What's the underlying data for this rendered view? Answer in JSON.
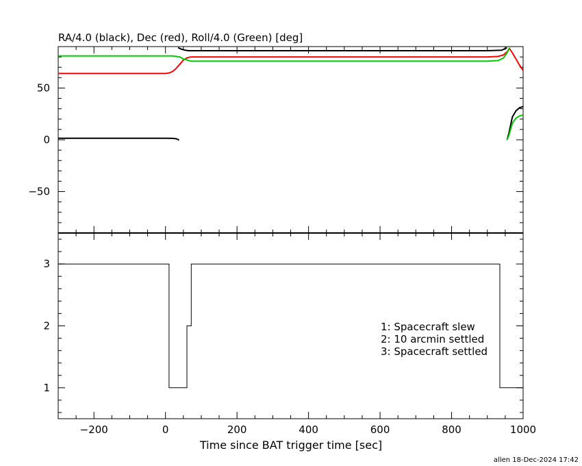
{
  "chart_data": [
    {
      "type": "line",
      "title": "RA/4.0 (black), Dec (red), Roll/4.0 (Green) [deg]",
      "xlim": [
        -300,
        1000
      ],
      "ylim": [
        -90,
        90
      ],
      "yticks": [
        "50",
        "0",
        "−50"
      ],
      "yticks_values": [
        50,
        0,
        -50
      ],
      "grid": false,
      "series": [
        {
          "name": "RA/4.0",
          "color": "#000000",
          "segments": [
            {
              "x": [
                -300,
                -200,
                -100,
                0,
                20,
                30,
                35,
                38
              ],
              "y": [
                1.5,
                1.5,
                1.5,
                1.5,
                1.4,
                1.0,
                0.3,
                -0.5
              ]
            },
            {
              "x": [
                35,
                45,
                55,
                65,
                80,
                200,
                400,
                600,
                800,
                900,
                940,
                955
              ],
              "y": [
                89,
                87.5,
                86.5,
                86,
                86,
                86,
                86,
                86,
                86,
                86,
                86.5,
                89
              ]
            },
            {
              "x": [
                955,
                960,
                965,
                970,
                980,
                990,
                1000
              ],
              "y": [
                0,
                6,
                14,
                22,
                28,
                31,
                32
              ]
            }
          ]
        },
        {
          "name": "Dec",
          "color": "#ff0000",
          "segments": [
            {
              "x": [
                -300,
                -200,
                -100,
                0,
                10,
                20,
                30,
                40,
                50,
                60,
                70,
                100,
                300,
                500,
                700,
                900,
                930,
                945,
                955,
                962,
                970,
                980,
                990,
                1000
              ],
              "y": [
                64,
                64,
                64,
                64,
                64.5,
                66,
                69,
                73,
                77,
                79,
                80,
                80,
                80,
                80,
                80,
                80,
                80.5,
                82,
                85,
                88,
                84,
                78,
                72,
                67
              ]
            }
          ]
        },
        {
          "name": "Roll/4.0",
          "color": "#00cc00",
          "segments": [
            {
              "x": [
                -300,
                -200,
                -100,
                0,
                20,
                40,
                50,
                60,
                70,
                100,
                300,
                500,
                700,
                900,
                930,
                945,
                955,
                962
              ],
              "y": [
                81,
                81,
                81,
                81,
                81,
                80,
                78,
                77,
                76,
                76,
                76,
                76,
                76,
                76,
                76.5,
                79,
                84,
                89
              ]
            },
            {
              "x": [
                955,
                960,
                965,
                970,
                980,
                990,
                1000
              ],
              "y": [
                0,
                4,
                10,
                16,
                21,
                23,
                24
              ]
            }
          ]
        }
      ]
    },
    {
      "type": "line",
      "xlabel": "Time since BAT trigger time [sec]",
      "xlim": [
        -300,
        1000
      ],
      "ylim": [
        0.5,
        3.5
      ],
      "xticks": [
        "−200",
        "0",
        "200",
        "400",
        "600",
        "800",
        "1000"
      ],
      "xticks_values": [
        -200,
        0,
        200,
        400,
        600,
        800,
        1000
      ],
      "yticks": [
        "3",
        "2",
        "1"
      ],
      "yticks_values": [
        3,
        2,
        1
      ],
      "grid": false,
      "series": [
        {
          "color": "#000000",
          "step": true,
          "x": [
            -300,
            10,
            10,
            60,
            60,
            72,
            72,
            935,
            935,
            1000
          ],
          "y": [
            3,
            3,
            1,
            1,
            2,
            2,
            3,
            3,
            1,
            1
          ]
        }
      ],
      "annotations": [
        "1: Spacecraft slew",
        "2: 10 arcmin settled",
        "3: Spacecraft settled"
      ]
    }
  ],
  "footer": "allen 18-Dec-2024 17:42"
}
